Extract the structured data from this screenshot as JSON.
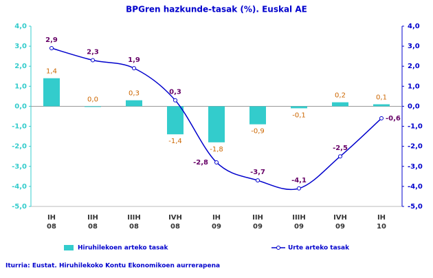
{
  "chart_data": {
    "type": "bar-line",
    "title": "BPGren hazkunde-tasak (%). Euskal AE",
    "categories": [
      [
        "IH",
        "08"
      ],
      [
        "IIH",
        "08"
      ],
      [
        "IIIH",
        "08"
      ],
      [
        "IVH",
        "08"
      ],
      [
        "IH",
        "09"
      ],
      [
        "IIH",
        "09"
      ],
      [
        "IIIH",
        "09"
      ],
      [
        "IVH",
        "09"
      ],
      [
        "IH",
        "10"
      ]
    ],
    "series": [
      {
        "name": "Hiruhilekoen arteko tasak",
        "type": "bar",
        "color": "#33cccc",
        "label_color": "#cc6600",
        "values": [
          1.4,
          0.0,
          0.3,
          -1.4,
          -1.8,
          -0.9,
          -0.1,
          0.2,
          0.1
        ],
        "value_labels": [
          "1,4",
          "0,0",
          "0,3",
          "-1,4",
          "-1,8",
          "-0,9",
          "-0,1",
          "0,2",
          "0,1"
        ]
      },
      {
        "name": "Urte arteko tasak",
        "type": "line",
        "axis": "y2",
        "color": "#0000cc",
        "label_color": "#660066",
        "values": [
          2.9,
          2.3,
          1.9,
          0.3,
          -2.8,
          -3.7,
          -4.1,
          -2.5,
          -0.6
        ],
        "value_labels": [
          "2,9",
          "2,3",
          "1,9",
          "0,3",
          "-2,8",
          "-3,7",
          "-4,1",
          "-2,5",
          "-0,6"
        ]
      }
    ],
    "ylim": [
      -5,
      4
    ],
    "yticks": [
      {
        "value": -5,
        "label": "-5,0"
      },
      {
        "value": -4,
        "label": "-4,0"
      },
      {
        "value": -3,
        "label": "-3,0"
      },
      {
        "value": -2,
        "label": "-2,0"
      },
      {
        "value": -1,
        "label": "-1,0"
      },
      {
        "value": 0,
        "label": "0,0"
      },
      {
        "value": 1,
        "label": "1,0"
      },
      {
        "value": 2,
        "label": "2,0"
      },
      {
        "value": 3,
        "label": "3,0"
      },
      {
        "value": 4,
        "label": "4,0"
      }
    ],
    "y2lim": [
      -5,
      4
    ],
    "y2ticks": [
      {
        "value": -5,
        "label": "-5,0"
      },
      {
        "value": -4,
        "label": "-4,0"
      },
      {
        "value": -3,
        "label": "-3,0"
      },
      {
        "value": -2,
        "label": "-2,0"
      },
      {
        "value": -1,
        "label": "-1,0"
      },
      {
        "value": 0,
        "label": "0,0"
      },
      {
        "value": 1,
        "label": "1,0"
      },
      {
        "value": 2,
        "label": "2,0"
      },
      {
        "value": 3,
        "label": "3,0"
      },
      {
        "value": 4,
        "label": "4,0"
      }
    ],
    "y_tick_color": "#33cccc",
    "y2_tick_color": "#0000cc",
    "source": "Iturria: Eustat. Hiruhilekoko Kontu Ekonomikoen aurrerapena"
  }
}
